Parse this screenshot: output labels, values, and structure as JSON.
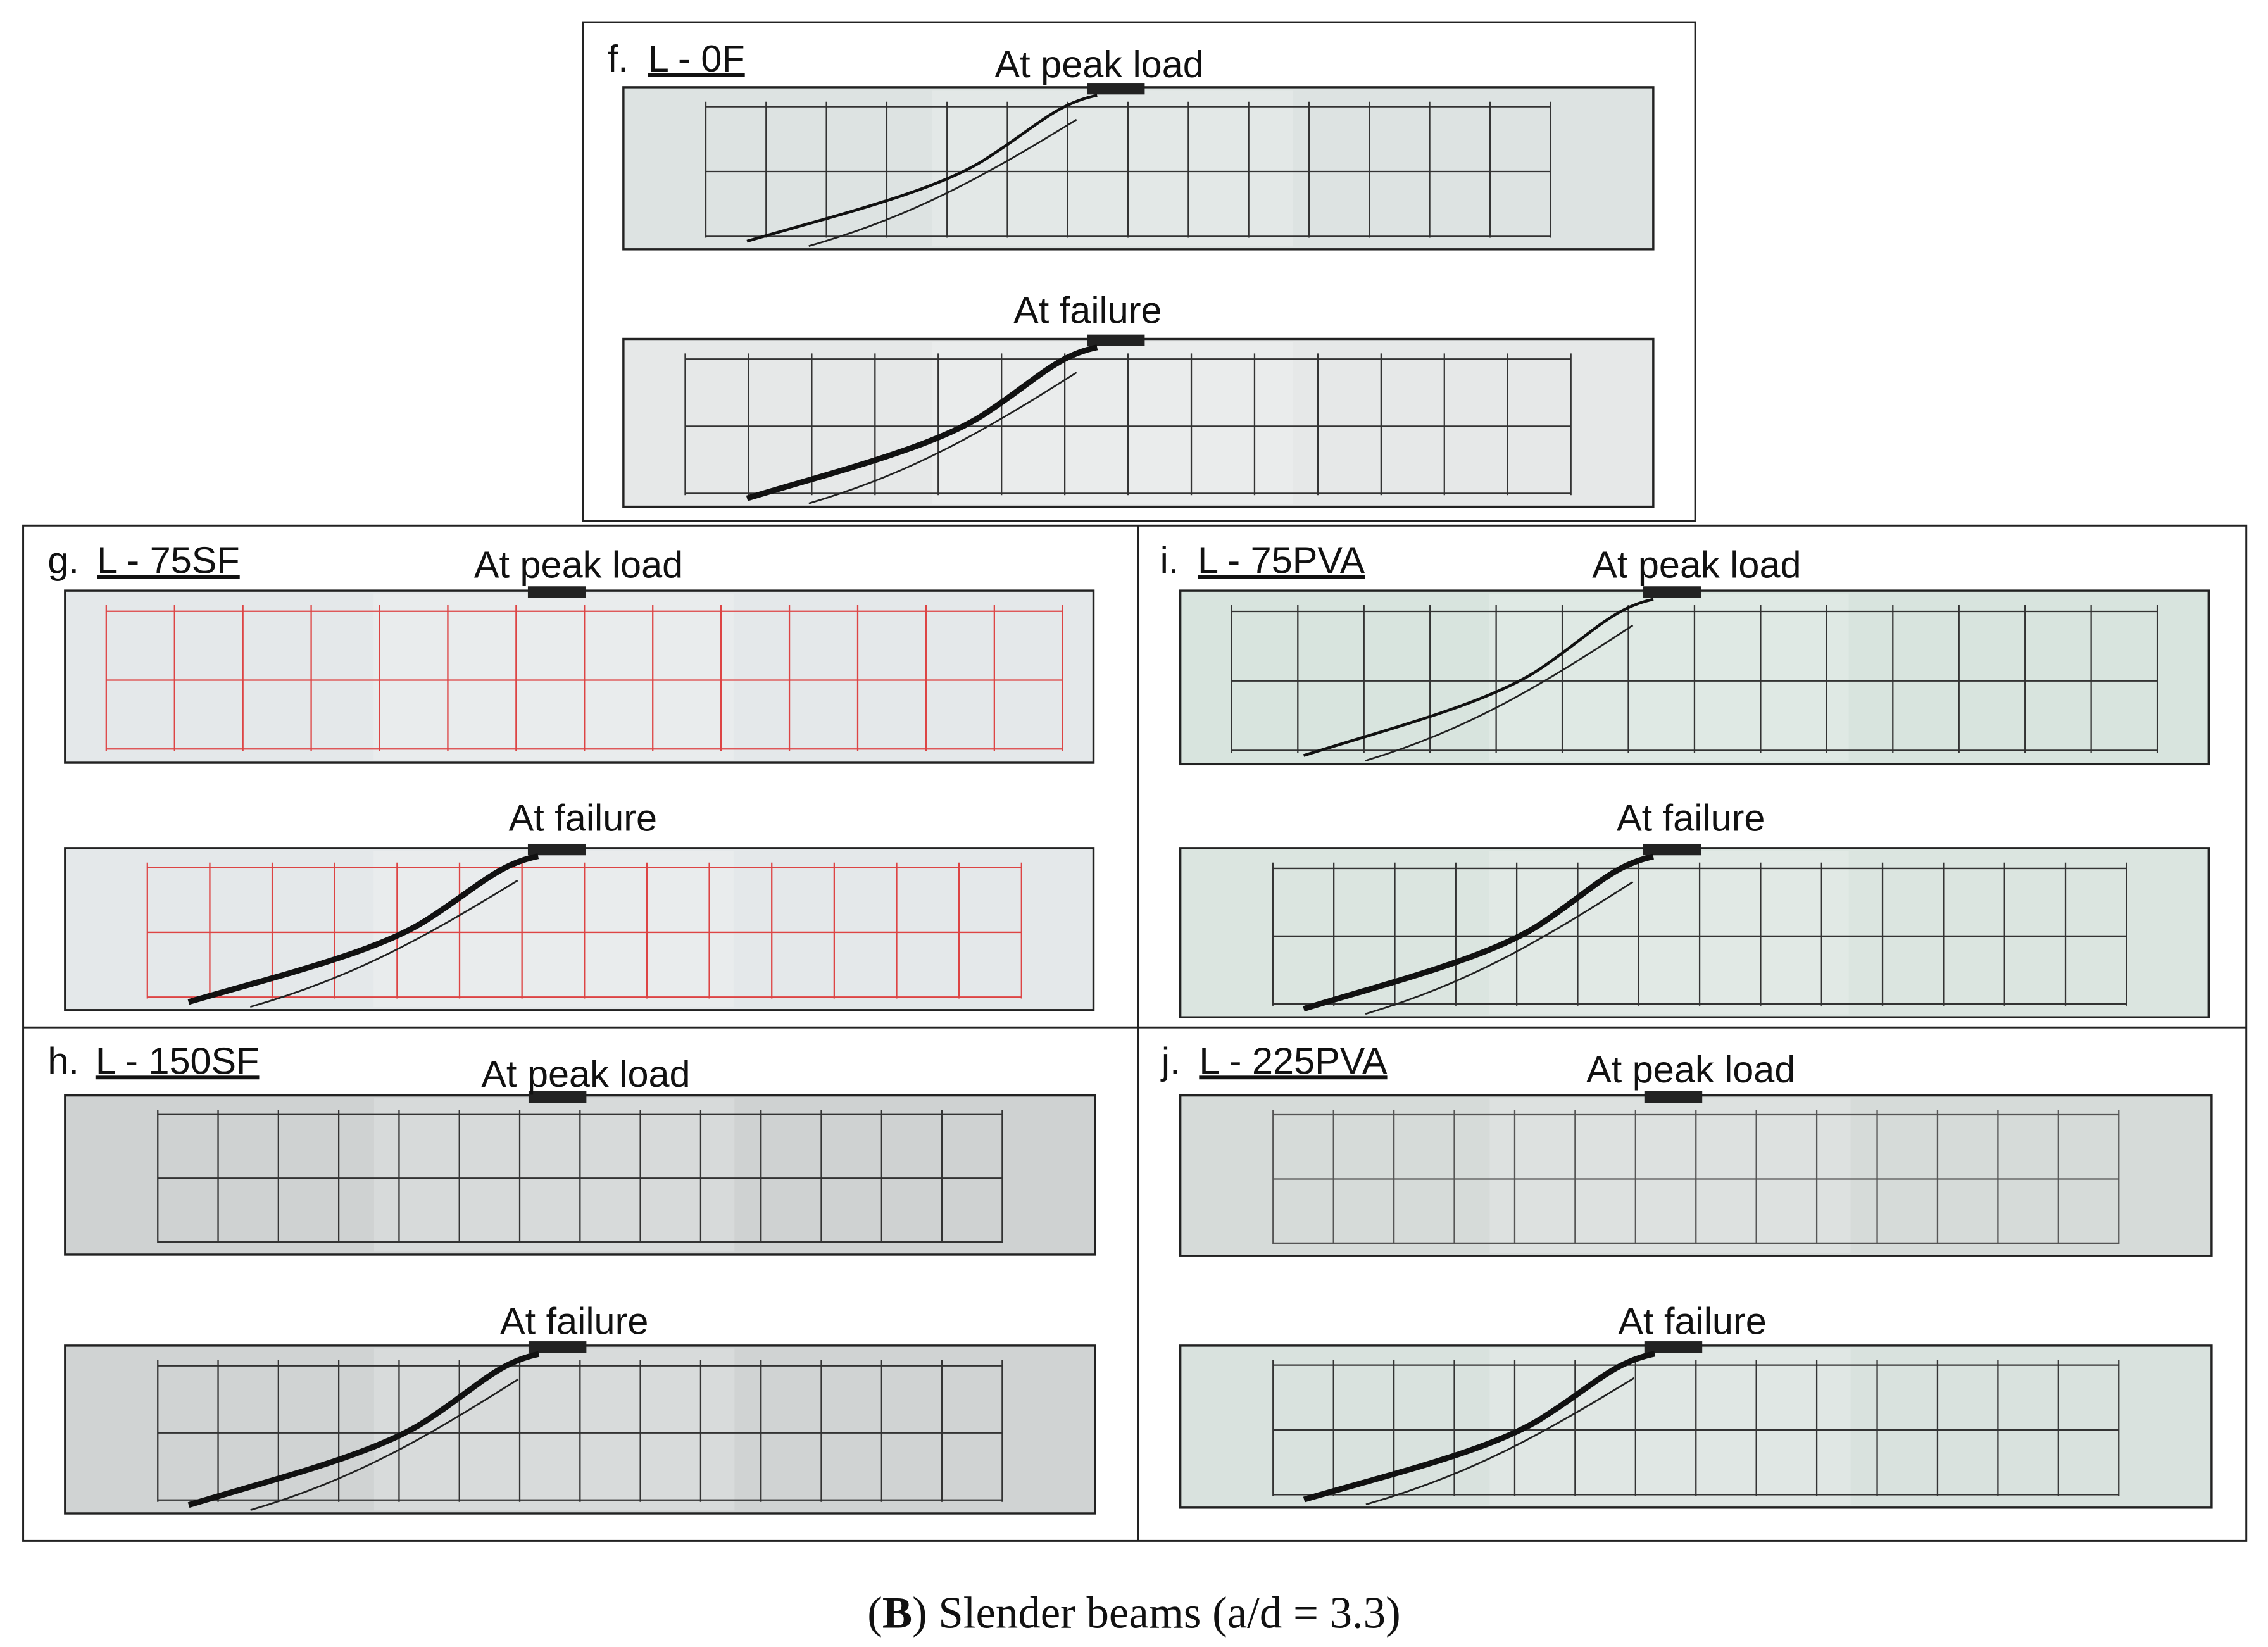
{
  "panels": [
    {
      "label": "f.",
      "name": "L - 0F",
      "top_caption": "At peak load",
      "bottom_caption": "At failure"
    },
    {
      "label": "g.",
      "name": "L - 75SF",
      "top_caption": "At peak load",
      "bottom_caption": "At failure"
    },
    {
      "label": "i.",
      "name": "L - 75PVA",
      "top_caption": "At peak load",
      "bottom_caption": "At failure"
    },
    {
      "label": "h.",
      "name": "L - 150SF",
      "top_caption": "At peak load",
      "bottom_caption": "At failure"
    },
    {
      "label": "j.",
      "name": "L - 225PVA",
      "top_caption": "At peak load",
      "bottom_caption": "At failure"
    }
  ],
  "caption": {
    "open": "(",
    "letter": "B",
    "rest": ") Slender beams (a/d = 3.3)"
  }
}
